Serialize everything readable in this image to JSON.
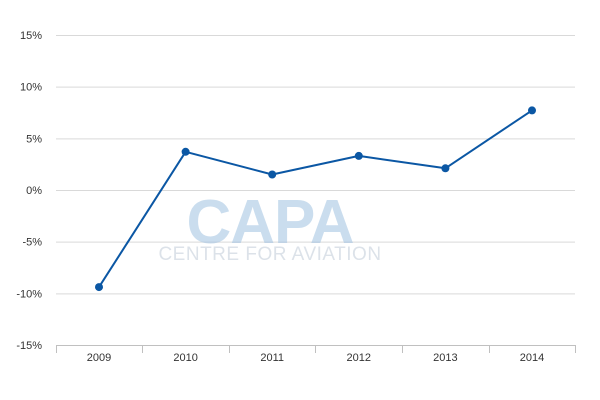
{
  "chart_data": {
    "type": "line",
    "x": [
      "2009",
      "2010",
      "2011",
      "2012",
      "2013",
      "2014"
    ],
    "series": [
      {
        "values": [
          -9.4,
          3.7,
          1.5,
          3.3,
          2.1,
          7.7
        ]
      }
    ],
    "y_ticks": [
      15,
      10,
      5,
      0,
      -5,
      -10,
      -15
    ],
    "y_tick_labels": [
      "15%",
      "10%",
      "5%",
      "0%",
      "-5%",
      "-10%",
      "-15%"
    ],
    "ylim": [
      -15,
      15
    ],
    "grid": true,
    "legend": "none",
    "title": "",
    "xlabel": "",
    "ylabel": ""
  },
  "watermark": {
    "brand": "CAPA",
    "tagline": "CENTRE FOR AVIATION"
  },
  "colors": {
    "series": "#0b57a4",
    "grid": "#d9d9d9",
    "axis": "#c0c0c0",
    "watermark": "#9ec1e0",
    "watermark_sub": "#bfcbd7"
  }
}
